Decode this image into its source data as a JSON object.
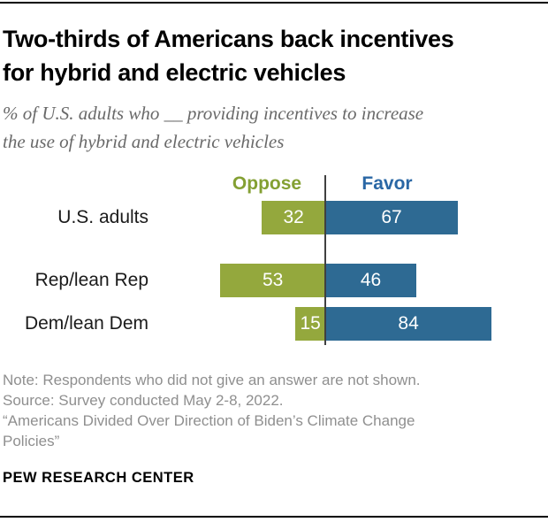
{
  "page": {
    "title_lines": [
      "Two-thirds of Americans back incentives",
      "for hybrid and electric vehicles"
    ],
    "subtitle_lines": [
      "% of U.S. adults who __ providing incentives to increase",
      "the use of hybrid and electric vehicles"
    ],
    "notes_lines": [
      "Note: Respondents who did not give an answer are not shown.",
      "Source: Survey conducted May 2-8, 2022.",
      "“Americans Divided Over Direction of Biden’s Climate Change",
      "Policies”"
    ],
    "brand": "PEW RESEARCH CENTER"
  },
  "chart_data": {
    "type": "bar",
    "variant": "diverging-horizontal",
    "title": "Two-thirds of Americans back incentives for hybrid and electric vehicles",
    "subtitle": "% of U.S. adults who __ providing incentives to increase the use of hybrid and electric vehicles",
    "categories": [
      "U.S. adults",
      "Rep/lean Rep",
      "Dem/lean Dem"
    ],
    "series": [
      {
        "name": "Oppose",
        "values": [
          32,
          53,
          15
        ],
        "bar_color": "#94a83d",
        "label_color": "#84a033",
        "direction": "left"
      },
      {
        "name": "Favor",
        "values": [
          67,
          46,
          84
        ],
        "bar_color": "#2e6a93",
        "label_color": "#2a67a5",
        "direction": "right"
      }
    ],
    "value_label_style": "inside-white",
    "axis_line_color": "#404040",
    "legend_position": "top-center",
    "grid": false,
    "unit": "percent",
    "note": "Note: Respondents who did not give an answer are not shown.",
    "source": "Source: Survey conducted May 2-8, 2022.",
    "report": "“Americans Divided Over Direction of Biden’s Climate Change Policies”"
  }
}
